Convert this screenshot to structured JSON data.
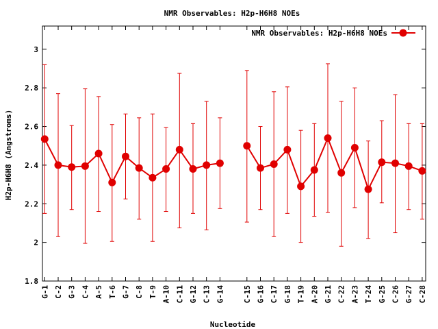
{
  "chart_data": {
    "type": "line",
    "title": "NMR Observables: H2p-H6H8 NOEs",
    "xlabel": "Nucleotide",
    "ylabel": "H2p-H6H8 (Angstroms)",
    "ylim": [
      1.8,
      3.12
    ],
    "yticks": [
      1.8,
      2,
      2.2,
      2.4,
      2.6,
      2.8,
      3
    ],
    "ytick_labels": [
      "1.8",
      "2",
      "2.2",
      "2.4",
      "2.6",
      "2.8",
      "3"
    ],
    "legend_position": "top-right",
    "color": "#e00000",
    "series": [
      {
        "name": "NMR Observables: H2p-H6H8 NOEs",
        "segments": [
          [
            {
              "label": "G-1",
              "y": 2.535,
              "lo": 2.15,
              "hi": 2.92
            },
            {
              "label": "C-2",
              "y": 2.4,
              "lo": 2.03,
              "hi": 2.77
            },
            {
              "label": "G-3",
              "y": 2.39,
              "lo": 2.17,
              "hi": 2.605
            },
            {
              "label": "C-4",
              "y": 2.395,
              "lo": 1.995,
              "hi": 2.795
            },
            {
              "label": "A-5",
              "y": 2.46,
              "lo": 2.16,
              "hi": 2.755
            },
            {
              "label": "T-6",
              "y": 2.31,
              "lo": 2.005,
              "hi": 2.61
            },
            {
              "label": "G-7",
              "y": 2.445,
              "lo": 2.225,
              "hi": 2.665
            },
            {
              "label": "C-8",
              "y": 2.385,
              "lo": 2.12,
              "hi": 2.645
            },
            {
              "label": "T-9",
              "y": 2.335,
              "lo": 2.005,
              "hi": 2.665
            },
            {
              "label": "A-10",
              "y": 2.38,
              "lo": 2.16,
              "hi": 2.595
            },
            {
              "label": "C-11",
              "y": 2.48,
              "lo": 2.075,
              "hi": 2.875
            },
            {
              "label": "G-12",
              "y": 2.38,
              "lo": 2.15,
              "hi": 2.615
            },
            {
              "label": "C-13",
              "y": 2.4,
              "lo": 2.065,
              "hi": 2.73
            },
            {
              "label": "G-14",
              "y": 2.41,
              "lo": 2.175,
              "hi": 2.645
            }
          ],
          [
            {
              "label": "C-15",
              "y": 2.5,
              "lo": 2.105,
              "hi": 2.89
            },
            {
              "label": "G-16",
              "y": 2.385,
              "lo": 2.17,
              "hi": 2.6
            },
            {
              "label": "C-17",
              "y": 2.405,
              "lo": 2.03,
              "hi": 2.78
            },
            {
              "label": "G-18",
              "y": 2.48,
              "lo": 2.15,
              "hi": 2.805
            },
            {
              "label": "T-19",
              "y": 2.29,
              "lo": 2.0,
              "hi": 2.58
            },
            {
              "label": "A-20",
              "y": 2.375,
              "lo": 2.135,
              "hi": 2.615
            },
            {
              "label": "G-21",
              "y": 2.54,
              "lo": 2.155,
              "hi": 2.925
            },
            {
              "label": "C-22",
              "y": 2.36,
              "lo": 1.98,
              "hi": 2.73
            },
            {
              "label": "A-23",
              "y": 2.49,
              "lo": 2.18,
              "hi": 2.8
            },
            {
              "label": "T-24",
              "y": 2.275,
              "lo": 2.02,
              "hi": 2.525
            },
            {
              "label": "G-25",
              "y": 2.415,
              "lo": 2.205,
              "hi": 2.63
            },
            {
              "label": "C-26",
              "y": 2.41,
              "lo": 2.05,
              "hi": 2.765
            },
            {
              "label": "G-27",
              "y": 2.395,
              "lo": 2.17,
              "hi": 2.615
            },
            {
              "label": "C-28",
              "y": 2.37,
              "lo": 2.12,
              "hi": 2.615
            }
          ]
        ]
      }
    ]
  }
}
